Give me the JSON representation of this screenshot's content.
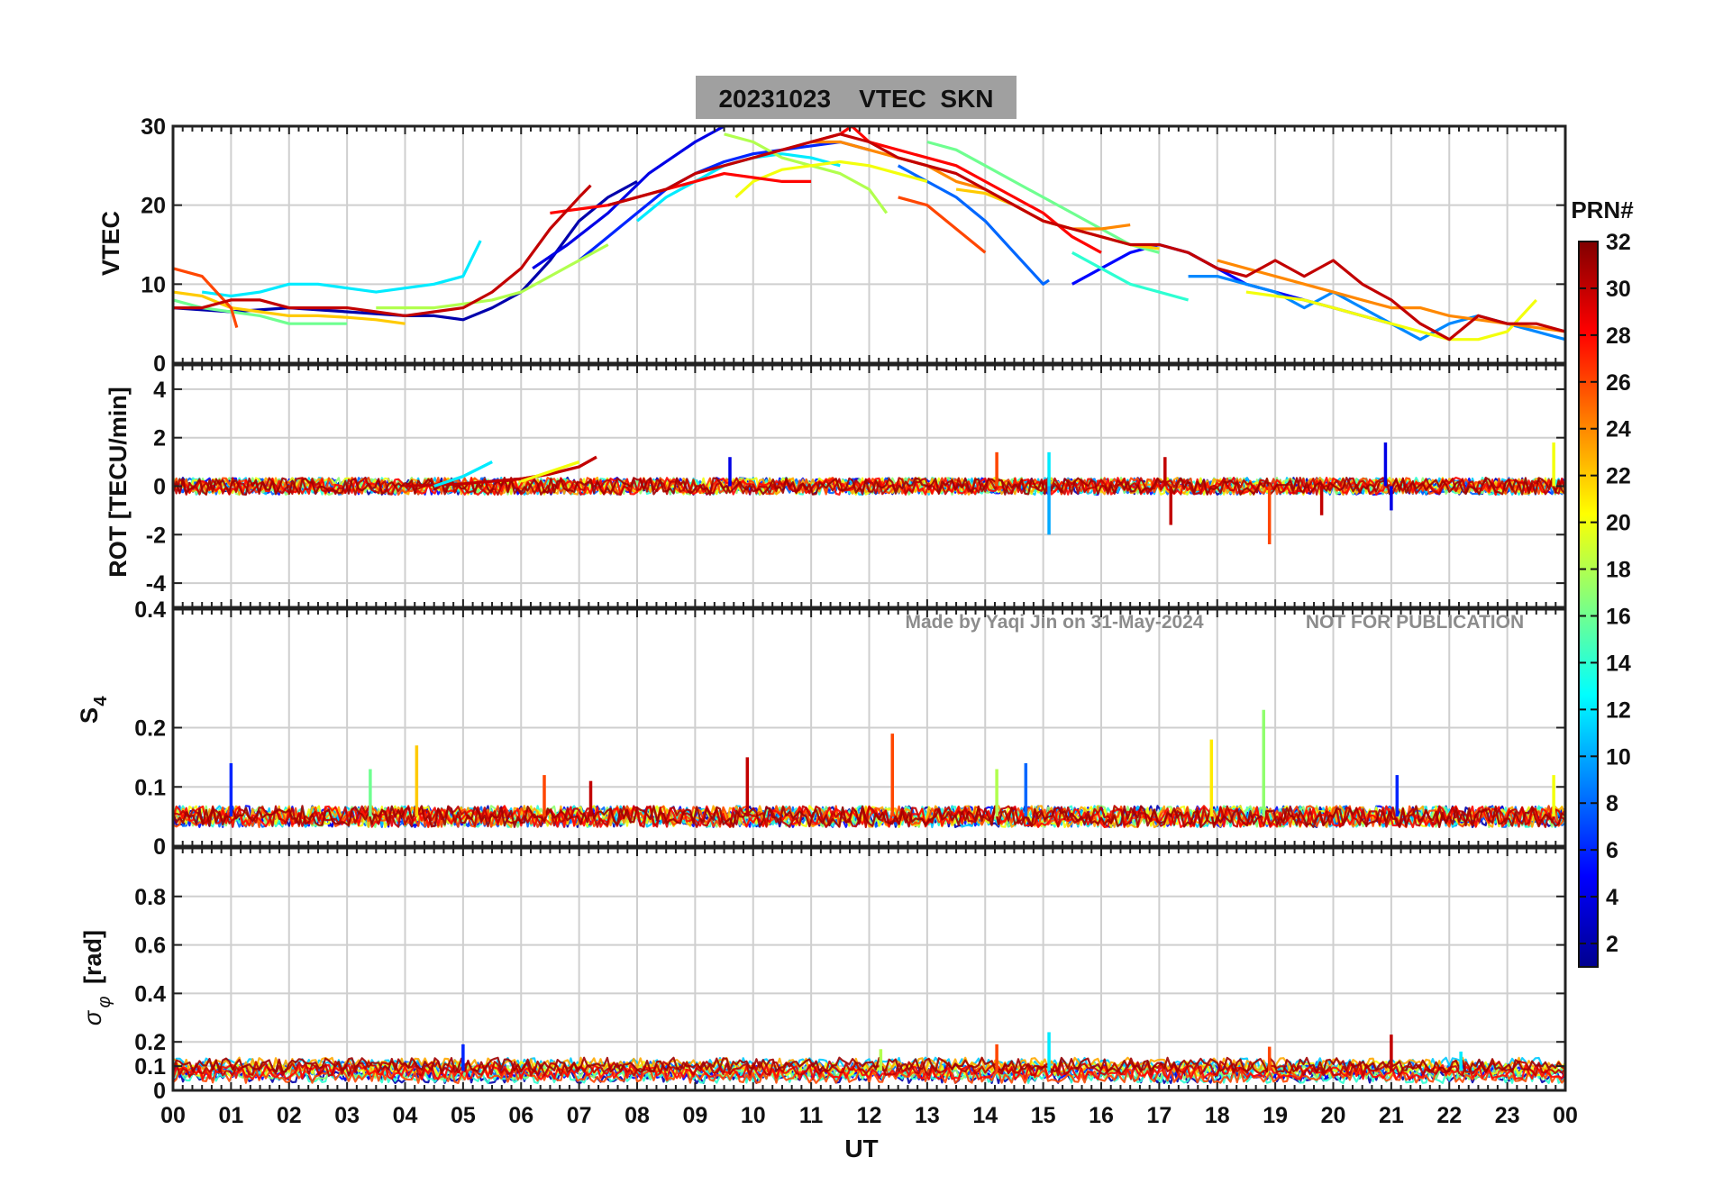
{
  "title": "20231023    VTEC  SKN",
  "watermark": {
    "made_by": "Made by Yaqi Jin on 31-May-2024",
    "notice": "NOT FOR PUBLICATION"
  },
  "colorbar": {
    "label": "PRN#",
    "min": 1,
    "max": 32,
    "ticks": [
      "2",
      "4",
      "6",
      "8",
      "10",
      "12",
      "14",
      "16",
      "18",
      "20",
      "22",
      "24",
      "26",
      "28",
      "30",
      "32"
    ],
    "tick_values": [
      2,
      4,
      6,
      8,
      10,
      12,
      14,
      16,
      18,
      20,
      22,
      24,
      26,
      28,
      30,
      32
    ],
    "colormap": "jet",
    "colors": [
      "#00008f",
      "#0000ff",
      "#0080ff",
      "#00ffff",
      "#80ff80",
      "#ffff00",
      "#ff8000",
      "#ff0000",
      "#800000"
    ]
  },
  "chart_data": [
    {
      "id": "vtec",
      "type": "line",
      "ylabel": "VTEC",
      "xlabel": "",
      "ylim": [
        0,
        30
      ],
      "yticks": [
        "0",
        "10",
        "20",
        "30"
      ],
      "ytick_values": [
        0,
        10,
        20,
        30
      ],
      "xlim": [
        0,
        24
      ],
      "grid": true,
      "legend": "colorbar PRN#",
      "series": [
        {
          "name": "PRN 2",
          "prn": 2,
          "x": [
            0,
            1,
            2,
            3,
            4,
            4.5,
            5,
            5.5,
            6,
            6.5,
            7,
            7.5,
            8
          ],
          "y": [
            7,
            6.5,
            7,
            6.5,
            6,
            6,
            5.5,
            7,
            9,
            13,
            18,
            21,
            23
          ]
        },
        {
          "name": "PRN 4",
          "prn": 4,
          "x": [
            6.2,
            6.8,
            7.5,
            8.2,
            9,
            9.5
          ],
          "y": [
            12,
            15,
            19,
            24,
            28,
            30
          ]
        },
        {
          "name": "PRN 5",
          "prn": 5,
          "x": [
            15.5,
            16,
            16.5,
            17,
            17.5,
            18,
            18.5,
            19,
            19.5,
            20,
            20.5,
            21
          ],
          "y": [
            10,
            12,
            14,
            15,
            14,
            12,
            10,
            9,
            8,
            7,
            6,
            5
          ]
        },
        {
          "name": "PRN 6",
          "prn": 6,
          "x": [
            7,
            7.5,
            8,
            8.5,
            9,
            9.5,
            10,
            10.5,
            11,
            11.5,
            12
          ],
          "y": [
            13,
            16,
            19,
            22,
            24,
            25.5,
            26.5,
            27,
            27.5,
            28,
            27
          ]
        },
        {
          "name": "PRN 8",
          "prn": 8,
          "x": [
            12.5,
            13,
            13.5,
            14,
            14.5,
            15,
            15.1
          ],
          "y": [
            25,
            23,
            21,
            18,
            14,
            10,
            10.5
          ]
        },
        {
          "name": "PRN 9",
          "prn": 9,
          "x": [
            17.5,
            18,
            18.5,
            19,
            19.5,
            20,
            20.5,
            21,
            21.5,
            22,
            22.5,
            23,
            23.5,
            24
          ],
          "y": [
            11,
            11,
            10,
            9,
            7,
            9,
            7,
            5,
            3,
            5,
            6,
            5,
            4,
            3
          ]
        },
        {
          "name": "PRN 12",
          "prn": 12,
          "x": [
            0.5,
            1,
            1.5,
            2,
            2.5,
            3,
            3.5,
            4,
            4.5,
            5,
            5.3
          ],
          "y": [
            9,
            8.5,
            9,
            10,
            10,
            9.5,
            9,
            9.5,
            10,
            11,
            15.5
          ]
        },
        {
          "name": "PRN 12b",
          "prn": 12,
          "x": [
            8,
            8.5,
            9,
            9.5,
            10,
            10.5,
            11,
            11.5
          ],
          "y": [
            18,
            21,
            23,
            25,
            26,
            26.5,
            26,
            25
          ]
        },
        {
          "name": "PRN 14",
          "prn": 14,
          "x": [
            15.5,
            16,
            16.5,
            17,
            17.5
          ],
          "y": [
            14,
            12,
            10,
            9,
            8
          ]
        },
        {
          "name": "PRN 16",
          "prn": 16,
          "x": [
            0,
            0.5,
            1,
            1.5,
            2,
            2.5,
            3
          ],
          "y": [
            8,
            7,
            6.5,
            6,
            5,
            5,
            5
          ]
        },
        {
          "name": "PRN 16b",
          "prn": 16,
          "x": [
            13,
            13.5,
            14,
            14.5,
            15,
            15.5,
            16,
            16.5,
            17
          ],
          "y": [
            28,
            27,
            25,
            23,
            21,
            19,
            17,
            15,
            14
          ]
        },
        {
          "name": "PRN 18",
          "prn": 18,
          "x": [
            3.5,
            4,
            4.5,
            5,
            5.5,
            6,
            6.5,
            7,
            7.5
          ],
          "y": [
            7,
            7,
            7,
            7.5,
            8,
            9,
            11,
            13,
            15
          ]
        },
        {
          "name": "PRN 18b",
          "prn": 18,
          "x": [
            9.5,
            10,
            10.5,
            11,
            11.5,
            12,
            12.3
          ],
          "y": [
            29,
            28,
            26,
            25,
            24,
            22,
            19
          ]
        },
        {
          "name": "PRN 20",
          "prn": 20,
          "x": [
            9.7,
            10,
            10.5,
            11,
            11.5,
            12,
            12.5,
            13
          ],
          "y": [
            21,
            23,
            24.5,
            25,
            25.5,
            25,
            24,
            23
          ]
        },
        {
          "name": "PRN 20b",
          "prn": 20,
          "x": [
            18.5,
            19,
            19.5,
            20,
            20.5,
            21,
            21.5,
            22,
            22.5,
            23,
            23.5
          ],
          "y": [
            9,
            8.5,
            8,
            7,
            6,
            5,
            4,
            3,
            3,
            4,
            8
          ]
        },
        {
          "name": "PRN 22",
          "prn": 22,
          "x": [
            0,
            0.5,
            1,
            1.5,
            2,
            2.5,
            3,
            3.5,
            4
          ],
          "y": [
            9,
            8.5,
            7,
            6.5,
            6,
            6,
            5.8,
            5.5,
            5
          ]
        },
        {
          "name": "PRN 22b",
          "prn": 22,
          "x": [
            13.5,
            14,
            14.5,
            15,
            15.5,
            16,
            16.5,
            17
          ],
          "y": [
            22,
            21.5,
            20,
            18,
            17,
            16,
            15,
            14.5
          ]
        },
        {
          "name": "PRN 24",
          "prn": 24,
          "x": [
            11,
            11.5,
            12,
            12.5,
            13,
            13.5,
            14,
            14.5,
            15,
            15.5,
            16,
            16.5
          ],
          "y": [
            28,
            28,
            27,
            26,
            25,
            23,
            22,
            20,
            18,
            17,
            17,
            17.5
          ]
        },
        {
          "name": "PRN 24b",
          "prn": 24,
          "x": [
            18,
            18.5,
            19,
            19.5,
            20,
            20.5,
            21,
            21.5,
            22,
            22.5,
            23,
            23.5,
            24
          ],
          "y": [
            13,
            12,
            11,
            10,
            9,
            8,
            7,
            7,
            6,
            5.5,
            5,
            4.5,
            4
          ]
        },
        {
          "name": "PRN 26",
          "prn": 26,
          "x": [
            0,
            0.5,
            1,
            1.1
          ],
          "y": [
            12,
            11,
            7,
            4.5
          ]
        },
        {
          "name": "PRN 26b",
          "prn": 26,
          "x": [
            12.5,
            13,
            13.5,
            14
          ],
          "y": [
            21,
            20,
            17,
            14
          ]
        },
        {
          "name": "PRN 28",
          "prn": 28,
          "x": [
            6.5,
            7,
            7.5,
            8,
            8.5,
            9,
            9.5,
            10,
            10.5,
            11
          ],
          "y": [
            19,
            19.5,
            20,
            21,
            22,
            23,
            24,
            23.5,
            23,
            23
          ]
        },
        {
          "name": "PRN 28b",
          "prn": 28,
          "x": [
            11,
            11.5,
            11.7,
            12,
            12.5,
            13,
            13.5,
            14,
            14.5,
            15,
            15.5,
            16
          ],
          "y": [
            28,
            29,
            30,
            28,
            27,
            26,
            25,
            23,
            21,
            19,
            16,
            14
          ]
        },
        {
          "name": "PRN 30",
          "prn": 30,
          "x": [
            0,
            0.5,
            1,
            1.5,
            2,
            2.5,
            3,
            3.5,
            4,
            4.5,
            5,
            5.5,
            6,
            6.5,
            7,
            7.2
          ],
          "y": [
            7,
            7,
            8,
            8,
            7,
            7,
            7,
            6.5,
            6,
            6.5,
            7,
            9,
            12,
            17,
            21,
            22.5
          ]
        },
        {
          "name": "PRN 30b",
          "prn": 30,
          "x": [
            7.5,
            8,
            8.5,
            9,
            9.5,
            10,
            10.5,
            11,
            11.5,
            12,
            12.5,
            13,
            13.5,
            14,
            14.5,
            15,
            15.5,
            16,
            16.5,
            17,
            17.5,
            18,
            18.5,
            19,
            19.5,
            20,
            20.5,
            21,
            21.5,
            22,
            22.5,
            23,
            23.5,
            24
          ],
          "y": [
            20,
            21,
            22,
            24,
            25,
            26,
            27,
            28,
            29,
            28,
            26,
            25,
            24,
            22,
            20,
            18,
            17,
            16,
            15,
            15,
            14,
            12,
            11,
            13,
            11,
            13,
            10,
            8,
            5,
            3,
            6,
            5,
            5,
            4
          ]
        }
      ]
    },
    {
      "id": "rot",
      "type": "line",
      "ylabel": "ROT [TECU/min]",
      "xlabel": "",
      "ylim": [
        -5,
        5
      ],
      "yticks": [
        "-4",
        "-2",
        "0",
        "2",
        "4"
      ],
      "ytick_values": [
        -4,
        -2,
        0,
        2,
        4
      ],
      "xlim": [
        0,
        24
      ],
      "grid": true,
      "series": [
        {
          "name": "ROT baseline",
          "prn": 16,
          "x": [
            0,
            24
          ],
          "y": [
            0,
            0
          ]
        },
        {
          "name": "PRN 30 rise",
          "prn": 30,
          "x": [
            4,
            5,
            6,
            6.5,
            7,
            7.3
          ],
          "y": [
            0,
            0.1,
            0.3,
            0.5,
            0.8,
            1.2
          ]
        },
        {
          "name": "PRN 12 rise",
          "prn": 12,
          "x": [
            4.5,
            5,
            5.5
          ],
          "y": [
            0,
            0.4,
            1.0
          ]
        },
        {
          "name": "PRN 20 rise",
          "prn": 20,
          "x": [
            6,
            6.5,
            7
          ],
          "y": [
            0.2,
            0.6,
            1.0
          ]
        }
      ],
      "spikes": [
        {
          "x": 9.6,
          "y": 1.2,
          "prn": 4
        },
        {
          "x": 14.2,
          "y": 1.4,
          "prn": 26
        },
        {
          "x": 15.1,
          "y": 1.4,
          "prn": 12
        },
        {
          "x": 15.1,
          "y": -2.0,
          "prn": 10
        },
        {
          "x": 17.1,
          "y": 1.2,
          "prn": 30
        },
        {
          "x": 17.2,
          "y": -1.6,
          "prn": 30
        },
        {
          "x": 18.9,
          "y": -2.4,
          "prn": 26
        },
        {
          "x": 19.8,
          "y": -1.2,
          "prn": 30
        },
        {
          "x": 20.9,
          "y": 1.8,
          "prn": 4
        },
        {
          "x": 21,
          "y": -1.0,
          "prn": 4
        },
        {
          "x": 23.8,
          "y": 1.8,
          "prn": 20
        }
      ]
    },
    {
      "id": "s4",
      "type": "line",
      "ylabel": "S4",
      "ylabel_main": "S",
      "ylabel_sub": "4",
      "xlabel": "",
      "ylim": [
        0,
        0.4
      ],
      "yticks": [
        "0",
        "0.1",
        "0.2",
        "0.4"
      ],
      "ytick_values": [
        0,
        0.1,
        0.2,
        0.4
      ],
      "xlim": [
        0,
        24
      ],
      "grid": true,
      "baseline_band": [
        0.04,
        0.06
      ],
      "spikes": [
        {
          "x": 1.0,
          "y": 0.14,
          "prn": 6
        },
        {
          "x": 3.4,
          "y": 0.13,
          "prn": 16
        },
        {
          "x": 4.2,
          "y": 0.17,
          "prn": 22
        },
        {
          "x": 6.4,
          "y": 0.12,
          "prn": 26
        },
        {
          "x": 7.2,
          "y": 0.11,
          "prn": 30
        },
        {
          "x": 9.9,
          "y": 0.15,
          "prn": 30
        },
        {
          "x": 12.4,
          "y": 0.19,
          "prn": 26
        },
        {
          "x": 14.2,
          "y": 0.13,
          "prn": 18
        },
        {
          "x": 14.7,
          "y": 0.14,
          "prn": 8
        },
        {
          "x": 17.9,
          "y": 0.18,
          "prn": 21
        },
        {
          "x": 18.8,
          "y": 0.23,
          "prn": 17
        },
        {
          "x": 21.1,
          "y": 0.12,
          "prn": 6
        },
        {
          "x": 23.8,
          "y": 0.12,
          "prn": 20
        }
      ]
    },
    {
      "id": "sigma_phi",
      "type": "line",
      "ylabel": "σφ [rad]",
      "ylabel_main": "σ",
      "ylabel_sub": "φ",
      "ylabel_unit": "[rad]",
      "xlabel": "UT",
      "ylim": [
        0,
        1
      ],
      "yticks": [
        "0",
        "0.1",
        "0.2",
        "0.4",
        "0.6",
        "0.8"
      ],
      "ytick_values": [
        0,
        0.1,
        0.2,
        0.4,
        0.6,
        0.8
      ],
      "xlim": [
        0,
        24
      ],
      "xticks": [
        "00",
        "01",
        "02",
        "03",
        "04",
        "05",
        "06",
        "07",
        "08",
        "09",
        "10",
        "11",
        "12",
        "13",
        "14",
        "15",
        "16",
        "17",
        "18",
        "19",
        "20",
        "21",
        "22",
        "23",
        "00"
      ],
      "grid": true,
      "baseline_band": [
        0.04,
        0.14
      ],
      "spikes": [
        {
          "x": 5.0,
          "y": 0.19,
          "prn": 6
        },
        {
          "x": 12.2,
          "y": 0.17,
          "prn": 18
        },
        {
          "x": 14.2,
          "y": 0.19,
          "prn": 26
        },
        {
          "x": 15.1,
          "y": 0.24,
          "prn": 12
        },
        {
          "x": 18.9,
          "y": 0.18,
          "prn": 26
        },
        {
          "x": 21.0,
          "y": 0.23,
          "prn": 30
        },
        {
          "x": 22.2,
          "y": 0.16,
          "prn": 12
        }
      ]
    }
  ]
}
